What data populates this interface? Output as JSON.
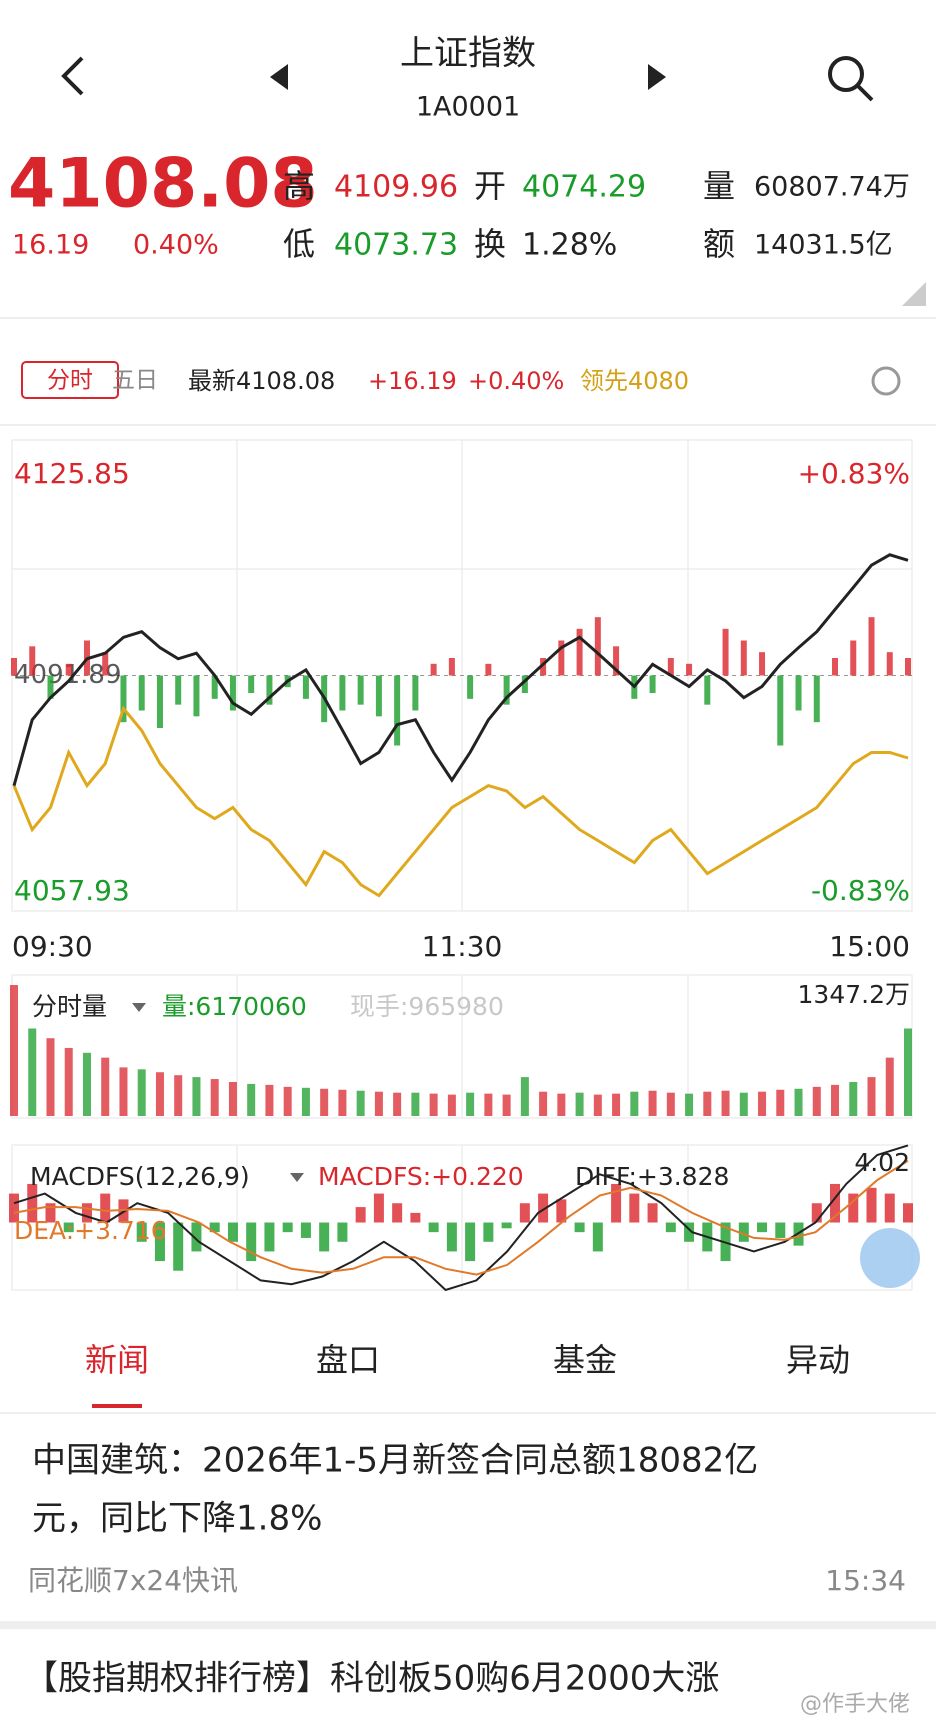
{
  "header": {
    "title": "上证指数",
    "code": "1A0001"
  },
  "quote": {
    "price": "4108.08",
    "change": "16.19",
    "change_pct": "0.40%",
    "high_label": "高",
    "high": "4109.96",
    "open_label": "开",
    "open": "4074.29",
    "volume_label": "量",
    "volume": "60807.74万",
    "low_label": "低",
    "low": "4073.73",
    "turnover_label": "换",
    "turnover": "1.28%",
    "amount_label": "额",
    "amount": "14031.5亿"
  },
  "toolbar": {
    "tabs": [
      "分时",
      "五日"
    ],
    "latest": "最新4108.08",
    "change": "+16.19",
    "change_pct": "+0.40%",
    "lead": "领先4080"
  },
  "price_chart": {
    "ylim": [
      4057.93,
      4125.85
    ],
    "yticks": [
      4057.93,
      4091.89,
      4125.85
    ],
    "right_labels": [
      "+0.83%",
      "-0.83%"
    ],
    "times": [
      "09:30",
      "11:30",
      "15:00"
    ],
    "series": [
      {
        "name": "price",
        "color": "#222222",
        "values": [
          4076.0,
          4085.5,
          4088.7,
          4091.1,
          4094.3,
          4095.1,
          4097.4,
          4098.2,
          4095.9,
          4094.3,
          4095.1,
          4091.9,
          4087.9,
          4086.3,
          4088.7,
          4091.1,
          4092.7,
          4088.7,
          4084.0,
          4079.2,
          4080.8,
          4084.8,
          4085.5,
          4080.8,
          4076.8,
          4080.8,
          4085.5,
          4088.7,
          4091.1,
          4093.5,
          4095.9,
          4097.4,
          4095.1,
          4092.7,
          4090.3,
          4093.5,
          4091.9,
          4090.3,
          4092.7,
          4091.1,
          4088.7,
          4090.3,
          4093.5,
          4095.9,
          4098.2,
          4101.4,
          4104.6,
          4107.8,
          4109.3,
          4108.5
        ]
      },
      {
        "name": "lead",
        "color": "#e0a81c",
        "values": [
          4076.02,
          4069.67,
          4072.85,
          4080.78,
          4076.02,
          4079.19,
          4087.13,
          4083.96,
          4079.19,
          4076.02,
          4072.85,
          4071.26,
          4072.85,
          4069.67,
          4068.09,
          4064.91,
          4061.74,
          4066.5,
          4064.91,
          4061.74,
          4060.15,
          4063.32,
          4066.5,
          4069.67,
          4072.85,
          4074.43,
          4076.02,
          4075.23,
          4072.85,
          4074.43,
          4072.05,
          4069.67,
          4068.09,
          4066.5,
          4064.91,
          4068.09,
          4069.67,
          4066.5,
          4063.32,
          4064.91,
          4066.5,
          4068.09,
          4069.67,
          4071.26,
          4072.85,
          4076.02,
          4079.19,
          4080.78,
          4080.78,
          4079.99
        ]
      }
    ],
    "bars": [
      3,
      5,
      -4,
      2,
      6,
      4,
      -8,
      -6,
      -9,
      -5,
      -7,
      -4,
      -6,
      -3,
      -5,
      -2,
      -4,
      -8,
      -6,
      -5,
      -7,
      -12,
      -6,
      2,
      3,
      -4,
      2,
      -5,
      -3,
      3,
      6,
      8,
      10,
      5,
      -4,
      -3,
      3,
      2,
      -5,
      8,
      6,
      4,
      -12,
      -6,
      -8,
      3,
      6,
      10,
      4,
      3
    ]
  },
  "volume_chart": {
    "label": "分时量",
    "volume": "量:6170060",
    "hand": "现手:965980",
    "max_label": "1347.2万",
    "ylim": [
      0,
      1347.2
    ],
    "values": [
      1347,
      900,
      800,
      700,
      650,
      600,
      500,
      480,
      450,
      420,
      400,
      380,
      350,
      330,
      320,
      300,
      290,
      280,
      270,
      260,
      250,
      240,
      240,
      230,
      220,
      240,
      230,
      220,
      400,
      250,
      230,
      240,
      220,
      230,
      250,
      260,
      240,
      230,
      250,
      260,
      240,
      250,
      270,
      280,
      300,
      320,
      350,
      400,
      600,
      900
    ]
  },
  "macd_chart": {
    "label": "MACDFS(12,26,9)",
    "macd": "MACDFS:+0.220",
    "diff": "DIFF:+3.828",
    "dea": "DEA:+3.716",
    "max_label": "4.02",
    "ylim": [
      -3.5,
      4.02
    ],
    "hist": [
      1.5,
      2,
      1,
      -0.5,
      1,
      1.5,
      1.2,
      -1,
      -2,
      -2.5,
      -1.5,
      -0.5,
      -1,
      -2,
      -1.5,
      -0.5,
      -0.8,
      -1.5,
      -1,
      0.8,
      1.5,
      1,
      0.5,
      -0.5,
      -1.5,
      -2,
      -1,
      -0.3,
      1,
      1.5,
      1.2,
      -0.5,
      -1.5,
      2,
      1.5,
      1,
      -0.5,
      -1,
      -1.5,
      -2,
      -1,
      -0.5,
      -0.8,
      -1.2,
      1,
      2,
      1.5,
      1.8,
      1.5,
      1
    ],
    "diff_values": [
      1,
      1.5,
      0.5,
      0,
      1,
      0.5,
      -1,
      -2,
      -3,
      -3.2,
      -2.8,
      -2,
      -1,
      -2,
      -3.5,
      -3,
      -1.5,
      0.5,
      1.5,
      2.5,
      2,
      1,
      -0.5,
      -1,
      -1.5,
      -1,
      0,
      2,
      3.5,
      4
    ],
    "dea_values": [
      0.5,
      0.8,
      0.8,
      0.6,
      0.7,
      0.6,
      0,
      -1,
      -1.8,
      -2.4,
      -2.6,
      -2.4,
      -1.8,
      -1.8,
      -2.4,
      -2.7,
      -2.2,
      -1,
      0.3,
      1.4,
      1.8,
      1.4,
      0.5,
      -0.2,
      -0.8,
      -0.9,
      -0.5,
      0.8,
      2.2,
      3.2
    ]
  },
  "tabs": [
    "新闻",
    "盘口",
    "基金",
    "异动"
  ],
  "news": [
    {
      "lines": [
        "中国建筑：2026年1-5月新签合同总额18082亿",
        "元，同比下降1.8%"
      ],
      "source": "同花顺7x24快讯",
      "time": "15:34"
    },
    {
      "lines": [
        "【股指期权排行榜】科创板50购6月2000大涨"
      ]
    }
  ],
  "watermark": "@作手大佬"
}
